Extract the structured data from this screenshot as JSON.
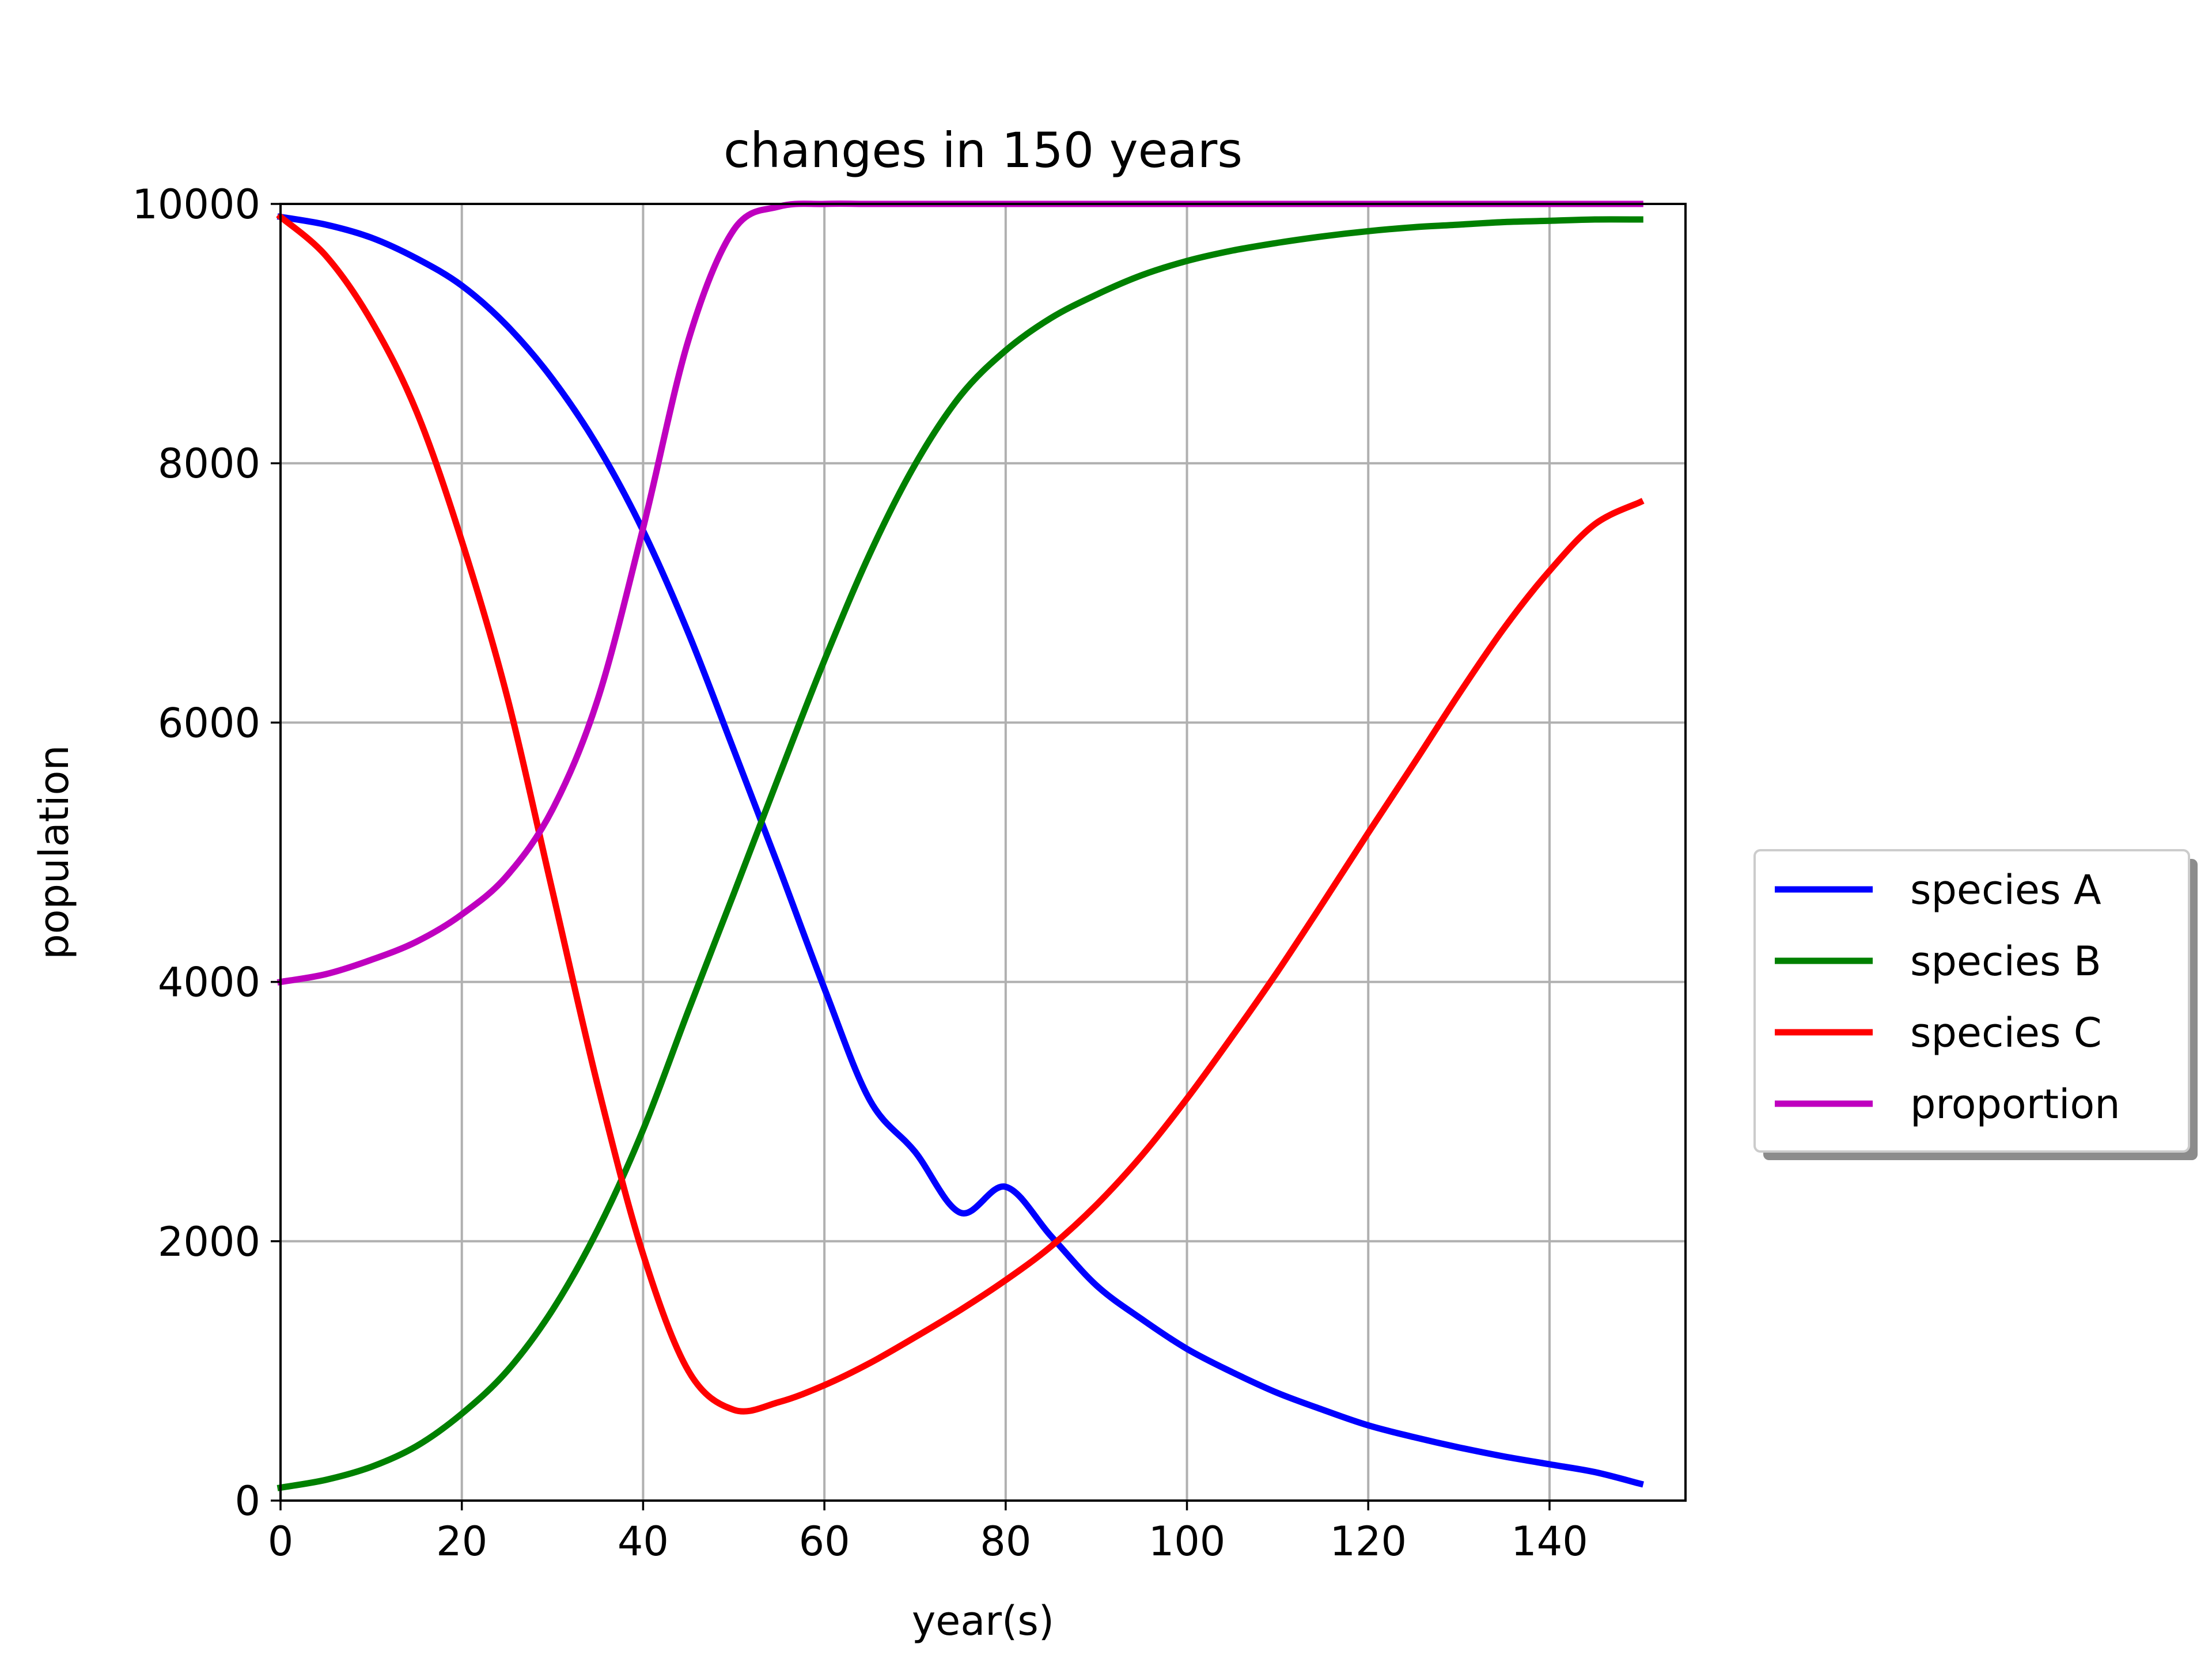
{
  "chart_data": {
    "type": "line",
    "title": "changes in 150 years",
    "xlabel": "year(s)",
    "ylabel": "population",
    "xlim": [
      0,
      155
    ],
    "ylim": [
      0,
      10000
    ],
    "x_ticks": [
      0,
      20,
      40,
      60,
      80,
      100,
      120,
      140
    ],
    "y_ticks": [
      0,
      2000,
      4000,
      6000,
      8000,
      10000
    ],
    "grid": true,
    "legend_position": "outside-right",
    "x": [
      0,
      5,
      10,
      15,
      20,
      25,
      30,
      35,
      40,
      45,
      50,
      55,
      60,
      65,
      70,
      75,
      80,
      85,
      90,
      95,
      100,
      105,
      110,
      115,
      120,
      125,
      130,
      135,
      140,
      145,
      150
    ],
    "series": [
      {
        "name": "species A",
        "color": "#0000ff",
        "values": [
          9900,
          9840,
          9740,
          9580,
          9370,
          9060,
          8650,
          8130,
          7480,
          6690,
          5790,
          4880,
          3950,
          3090,
          2690,
          2220,
          2420,
          2040,
          1660,
          1400,
          1170,
          990,
          830,
          700,
          580,
          490,
          410,
          340,
          280,
          220,
          130
        ]
      },
      {
        "name": "species B",
        "color": "#008000",
        "values": [
          100,
          160,
          260,
          420,
          670,
          1000,
          1470,
          2090,
          2860,
          3780,
          4680,
          5590,
          6480,
          7300,
          7990,
          8520,
          8870,
          9120,
          9300,
          9450,
          9560,
          9640,
          9700,
          9750,
          9790,
          9820,
          9840,
          9860,
          9870,
          9880,
          9880
        ]
      },
      {
        "name": "species C",
        "color": "#ff0000",
        "values": [
          9900,
          9600,
          9100,
          8400,
          7400,
          6200,
          4700,
          3200,
          1900,
          1000,
          700,
          760,
          890,
          1060,
          1260,
          1470,
          1700,
          1960,
          2280,
          2660,
          3100,
          3580,
          4080,
          4610,
          5150,
          5680,
          6220,
          6730,
          7170,
          7530,
          7700
        ]
      },
      {
        "name": "proportion",
        "color": "#bf00bf",
        "values": [
          4000,
          4060,
          4170,
          4310,
          4520,
          4820,
          5330,
          6180,
          7500,
          8950,
          9800,
          9980,
          10000,
          10000,
          10000,
          10000,
          10000,
          10000,
          10000,
          10000,
          10000,
          10000,
          10000,
          10000,
          10000,
          10000,
          10000,
          10000,
          10000,
          10000,
          10000
        ]
      }
    ]
  }
}
